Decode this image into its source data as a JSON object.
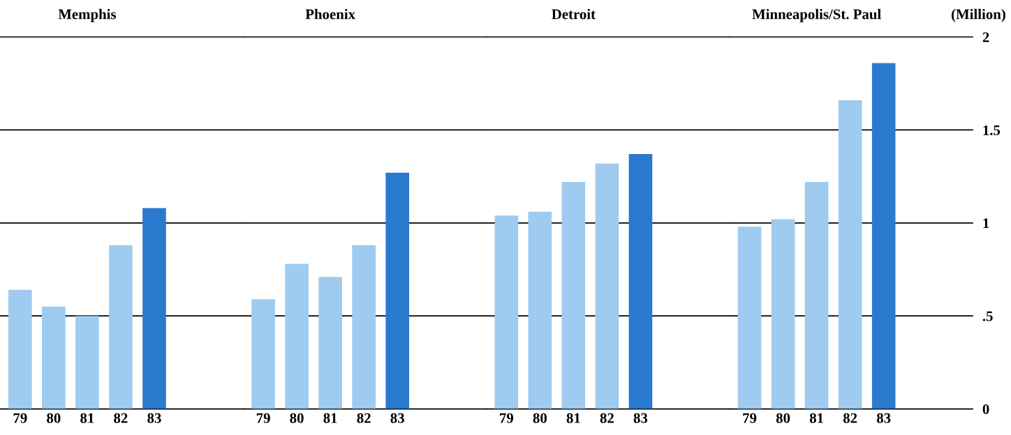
{
  "chart_data": [
    {
      "type": "bar",
      "title": "Memphis",
      "categories": [
        "79",
        "80",
        "81",
        "82",
        "83"
      ],
      "values": [
        0.64,
        0.55,
        0.5,
        0.88,
        1.08
      ],
      "colors": [
        "#9ecbef",
        "#9ecbef",
        "#9ecbef",
        "#9ecbef",
        "#2a7ad0"
      ],
      "ylim": [
        0,
        2
      ],
      "grid": "y",
      "tick_labels": "x"
    },
    {
      "type": "bar",
      "title": "Phoenix",
      "categories": [
        "79",
        "80",
        "81",
        "82",
        "83"
      ],
      "values": [
        0.59,
        0.78,
        0.71,
        0.88,
        1.27
      ],
      "colors": [
        "#9ecbef",
        "#9ecbef",
        "#9ecbef",
        "#9ecbef",
        "#2a7ad0"
      ],
      "ylim": [
        0,
        2
      ],
      "grid": "y",
      "tick_labels": "x"
    },
    {
      "type": "bar",
      "title": "Detroit",
      "categories": [
        "79",
        "80",
        "81",
        "82",
        "83"
      ],
      "values": [
        1.04,
        1.06,
        1.22,
        1.32,
        1.37
      ],
      "colors": [
        "#9ecbef",
        "#9ecbef",
        "#9ecbef",
        "#9ecbef",
        "#2a7ad0"
      ],
      "ylim": [
        0,
        2
      ],
      "grid": "y",
      "tick_labels": "x"
    },
    {
      "type": "bar",
      "title": "Minneapolis/St. Paul",
      "ylabel": "(Million)",
      "categories": [
        "79",
        "80",
        "81",
        "82",
        "83"
      ],
      "values": [
        0.98,
        1.02,
        1.22,
        1.66,
        1.86
      ],
      "colors": [
        "#9ecbef",
        "#9ecbef",
        "#9ecbef",
        "#9ecbef",
        "#2a7ad0"
      ],
      "ylim": [
        0,
        2
      ],
      "yticks": [
        0,
        {
          "value": 0.5,
          "label": ".5"
        },
        1,
        1.5,
        2
      ],
      "grid": "y"
    }
  ]
}
